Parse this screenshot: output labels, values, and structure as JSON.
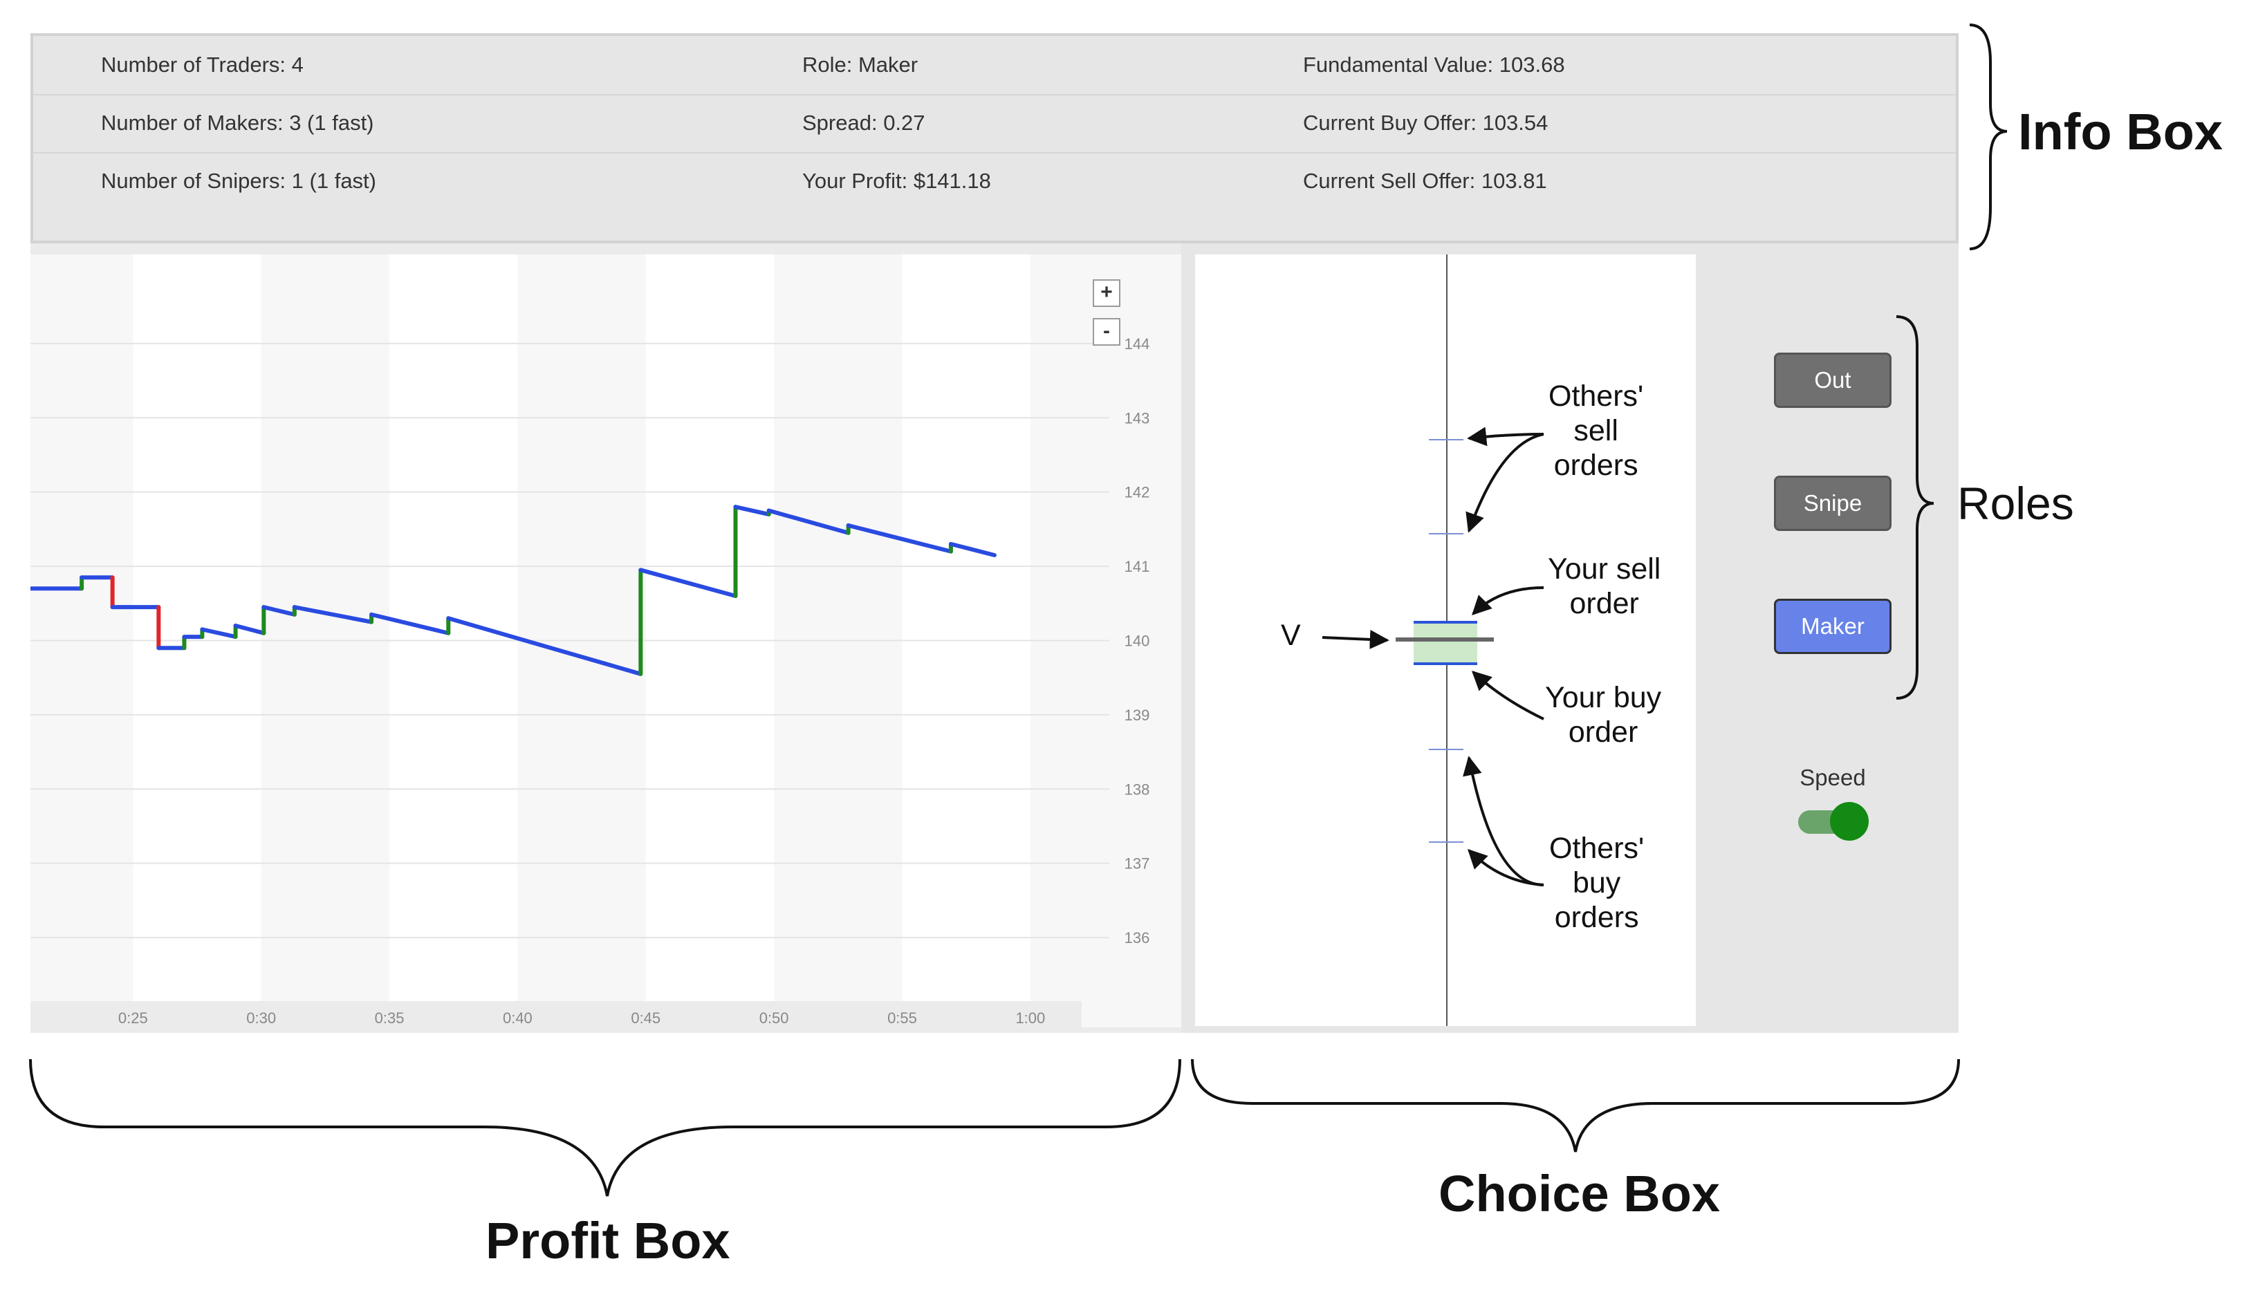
{
  "info_box": {
    "rows": [
      {
        "c1": "Number of Traders: 4",
        "c2": "Role: Maker",
        "c3": "Fundamental Value: 103.68"
      },
      {
        "c1": "Number of Makers: 3 (1 fast)",
        "c2": "Spread: 0.27",
        "c3": "Current Buy Offer: 103.54"
      },
      {
        "c1": "Number of Snipers: 1 (1 fast)",
        "c2": "Your Profit: $141.18",
        "c3": "Current Sell Offer: 103.81"
      }
    ]
  },
  "profit_chart": {
    "zoom_in": "+",
    "zoom_out": "-"
  },
  "chart_data": {
    "type": "line",
    "x_ticks": [
      "0:25",
      "0:30",
      "0:35",
      "0:40",
      "0:45",
      "0:50",
      "0:55",
      "1:00"
    ],
    "y_ticks": [
      "144",
      "143",
      "142",
      "141",
      "140",
      "139",
      "138",
      "137",
      "136"
    ],
    "ylim": [
      135.2,
      145.2
    ],
    "xlim_seconds": [
      21,
      62
    ],
    "grid": true,
    "colors": {
      "decay": "#2a4be0",
      "gain": "#1e8a1e",
      "loss": "#e0262a"
    },
    "points": [
      [
        21.0,
        140.7
      ],
      [
        23.0,
        140.7
      ],
      [
        23.0,
        140.85
      ],
      [
        24.2,
        140.85
      ],
      [
        24.2,
        140.45
      ],
      [
        26.0,
        140.45
      ],
      [
        26.0,
        139.9
      ],
      [
        27.0,
        139.9
      ],
      [
        27.0,
        140.05
      ],
      [
        27.7,
        140.05
      ],
      [
        27.7,
        140.15
      ],
      [
        29.0,
        140.05
      ],
      [
        29.0,
        140.2
      ],
      [
        30.1,
        140.1
      ],
      [
        30.1,
        140.45
      ],
      [
        31.3,
        140.35
      ],
      [
        31.3,
        140.45
      ],
      [
        34.3,
        140.25
      ],
      [
        34.3,
        140.35
      ],
      [
        37.3,
        140.1
      ],
      [
        37.3,
        140.3
      ],
      [
        44.8,
        139.55
      ],
      [
        44.8,
        140.95
      ],
      [
        48.5,
        140.6
      ],
      [
        48.5,
        141.8
      ],
      [
        49.8,
        141.7
      ],
      [
        49.8,
        141.75
      ],
      [
        52.9,
        141.45
      ],
      [
        52.9,
        141.55
      ],
      [
        56.9,
        141.2
      ],
      [
        56.9,
        141.3
      ],
      [
        58.6,
        141.15
      ]
    ]
  },
  "choice_box": {
    "v_label": "V",
    "annotations": {
      "others_sell": "Others'\nsell\norders",
      "your_sell": "Your sell\norder",
      "your_buy": "Your buy\norder",
      "others_buy": "Others'\nbuy\norders"
    },
    "roles": [
      "Out",
      "Snipe",
      "Maker"
    ],
    "active_role": "Maker",
    "speed_label": "Speed",
    "speed_on": true
  },
  "labels": {
    "info_box": "Info Box",
    "roles": "Roles",
    "profit_box": "Profit Box",
    "choice_box": "Choice Box"
  }
}
